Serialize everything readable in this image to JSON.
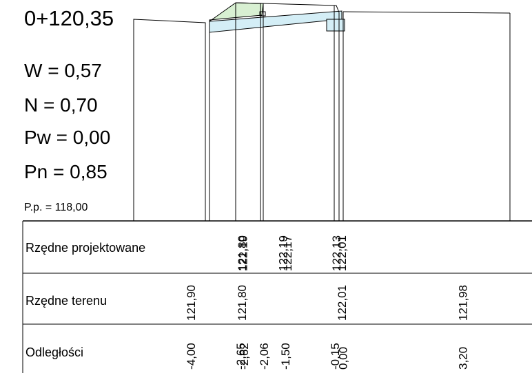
{
  "station": "0+120,35",
  "params": [
    {
      "key": "w",
      "text": "W = 0,57"
    },
    {
      "key": "n",
      "text": "N = 0,70"
    },
    {
      "key": "pw",
      "text": "Pw = 0,00"
    },
    {
      "key": "pn",
      "text": "Pn = 0,85"
    }
  ],
  "datum": "P.p. = 118,00",
  "rows": {
    "design_label": "Rzędne projektowane",
    "terrain_label": "Rzędne terenu",
    "distance_label": "Odległości"
  },
  "design_values": [
    {
      "offset": -2.65,
      "text": "121,80"
    },
    {
      "offset": -2.62,
      "text": "122,19"
    },
    {
      "offset": -1.56,
      "text": "122,19"
    },
    {
      "offset": -1.44,
      "text": "122,17"
    },
    {
      "offset": -0.15,
      "text": "122,13"
    },
    {
      "offset": 0.0,
      "text": "122,01"
    }
  ],
  "terrain_values": [
    {
      "offset": -4.0,
      "text": "121,90"
    },
    {
      "offset": -2.65,
      "text": "121,80"
    },
    {
      "offset": 0.0,
      "text": "122,01"
    },
    {
      "offset": 3.2,
      "text": "121,98"
    }
  ],
  "distance_values": [
    {
      "offset": -4.0,
      "text": "-4,00"
    },
    {
      "offset": -2.68,
      "text": "-2,65"
    },
    {
      "offset": -2.59,
      "text": "-2,62"
    },
    {
      "offset": -2.06,
      "text": "-2,06"
    },
    {
      "offset": -1.5,
      "text": "-1,50"
    },
    {
      "offset": -0.18,
      "text": "-0,15"
    },
    {
      "offset": 0.03,
      "text": "0,00"
    },
    {
      "offset": 3.2,
      "text": "3,20"
    }
  ],
  "colors": {
    "line": "#000000",
    "pavement_fill": "#d4eef6",
    "shoulder_fill": "#d8f0d2",
    "background": "#ffffff"
  }
}
